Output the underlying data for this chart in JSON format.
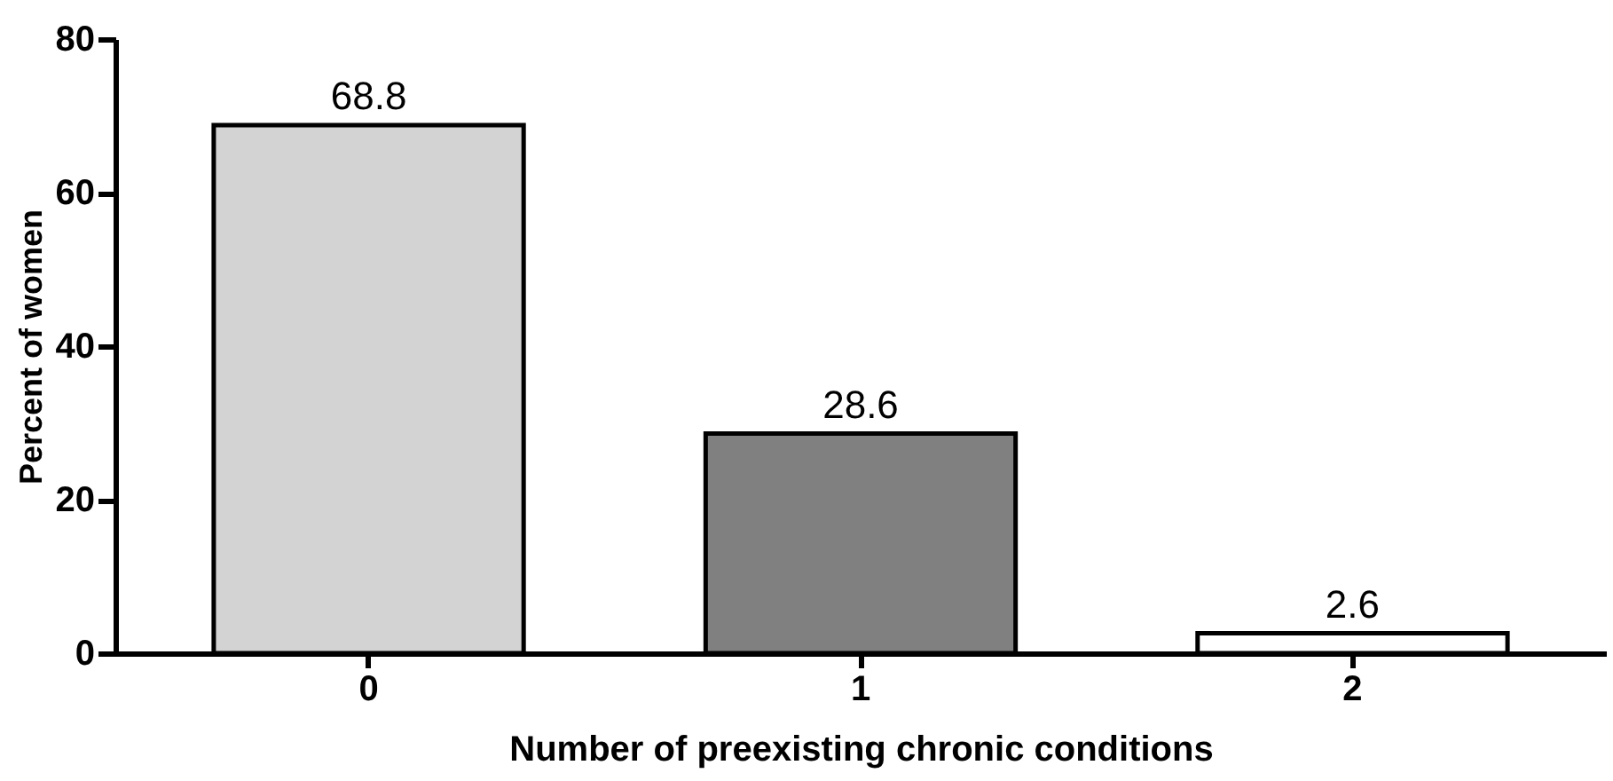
{
  "chart_data": {
    "type": "bar",
    "xlabel": "Number of preexisting chronic conditions",
    "ylabel": "Percent of women",
    "categories": [
      "0",
      "1",
      "2"
    ],
    "values": [
      68.8,
      28.6,
      2.6
    ],
    "colors": [
      "#d3d3d3",
      "#808080",
      "#ffffff"
    ],
    "ylim": [
      0,
      80
    ],
    "yticks": [
      0,
      20,
      40,
      60,
      80
    ],
    "data_labels": true,
    "grid": false
  }
}
